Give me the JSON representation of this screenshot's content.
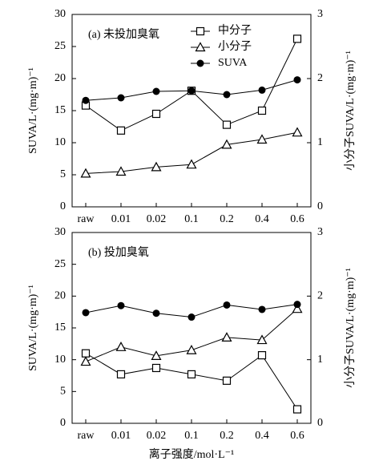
{
  "chart_data": [
    {
      "type": "line",
      "title": "(a) 未投加臭氧",
      "categories": [
        "raw",
        "0.01",
        "0.02",
        "0.1",
        "0.2",
        "0.4",
        "0.6"
      ],
      "ylabel": "SUVA/L·(mg·m)⁻¹",
      "y2label": "小分子SUVA/L·(mg·m)⁻¹",
      "ylim": [
        0,
        30
      ],
      "yticks": [
        0,
        5,
        10,
        15,
        20,
        25,
        30
      ],
      "y2lim": [
        0,
        3
      ],
      "y2ticks": [
        0,
        1,
        2,
        3
      ],
      "legend": "top",
      "series": [
        {
          "name": "中分子",
          "color": "#000000",
          "marker": "square",
          "values": [
            15.8,
            11.9,
            14.5,
            18.1,
            12.8,
            15.0,
            26.2
          ]
        },
        {
          "name": "小分子",
          "color": "#000000",
          "marker": "triangle",
          "axis": "y2",
          "values": [
            0.52,
            0.55,
            0.62,
            0.66,
            0.97,
            1.05,
            1.16
          ]
        },
        {
          "name": "SUVA",
          "color": "#000000",
          "marker": "circle",
          "values": [
            16.6,
            17.0,
            18.0,
            18.1,
            17.5,
            18.2,
            19.8
          ]
        }
      ]
    },
    {
      "type": "line",
      "title": "(b) 投加臭氧",
      "categories": [
        "raw",
        "0.01",
        "0.02",
        "0.1",
        "0.2",
        "0.4",
        "0.6"
      ],
      "xlabel": "离子强度/mol·L⁻¹",
      "ylabel": "SUVA/L·(mg·m)⁻¹",
      "y2label": "小分子SUVA/L·(mg·m)⁻¹",
      "ylim": [
        0,
        30
      ],
      "yticks": [
        0,
        5,
        10,
        15,
        20,
        25,
        30
      ],
      "y2lim": [
        0,
        3
      ],
      "y2ticks": [
        0,
        1,
        2,
        3
      ],
      "series": [
        {
          "color": "#000000",
          "marker": "square",
          "values": [
            11.0,
            7.7,
            8.7,
            7.7,
            6.7,
            10.7,
            2.2
          ]
        },
        {
          "color": "#000000",
          "marker": "triangle",
          "axis": "y2",
          "values": [
            0.97,
            1.2,
            1.06,
            1.15,
            1.35,
            1.31,
            1.8
          ]
        },
        {
          "color": "#000000",
          "marker": "circle",
          "values": [
            17.4,
            18.5,
            17.3,
            16.7,
            18.6,
            17.9,
            18.7
          ]
        }
      ]
    }
  ]
}
